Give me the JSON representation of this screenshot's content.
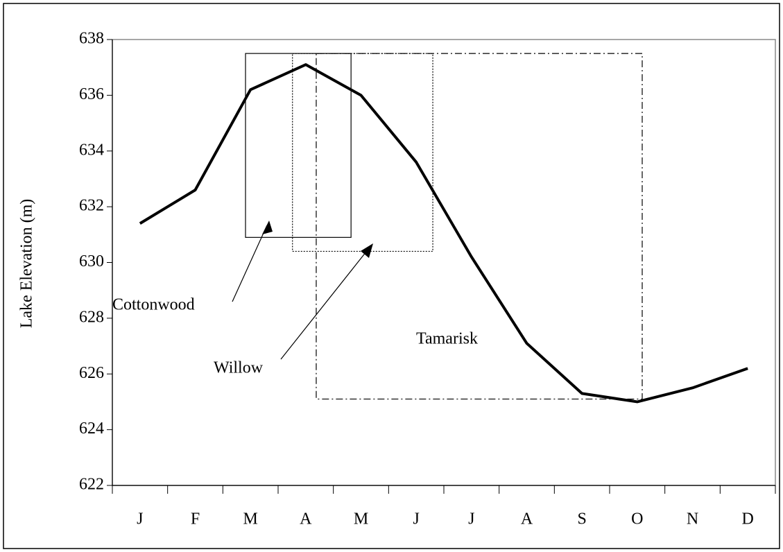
{
  "chart_data": {
    "type": "line",
    "y_label": "Lake Elevation (m)",
    "categories": [
      "J",
      "F",
      "M",
      "A",
      "M",
      "J",
      "J",
      "A",
      "S",
      "O",
      "N",
      "D"
    ],
    "series": [
      {
        "color": "#000000",
        "values": [
          631.4,
          632.6,
          636.2,
          637.1,
          636.0,
          633.6,
          630.2,
          627.1,
          625.3,
          625.0,
          625.5,
          626.2
        ]
      }
    ],
    "ylim": [
      622,
      638
    ],
    "yticks": [
      622,
      624,
      626,
      628,
      630,
      632,
      634,
      636,
      638
    ],
    "grid": false,
    "regions": [
      {
        "name": "Cottonwood",
        "x": [
          2.41,
          4.32
        ],
        "y": [
          630.9,
          637.5
        ],
        "style": "solid"
      },
      {
        "name": "Willow",
        "x": [
          3.26,
          5.8
        ],
        "y": [
          630.4,
          637.5
        ],
        "style": "dotted"
      },
      {
        "name": "Tamarisk",
        "x": [
          3.69,
          9.59
        ],
        "y": [
          625.1,
          637.5
        ],
        "style": "dashdot"
      }
    ]
  }
}
